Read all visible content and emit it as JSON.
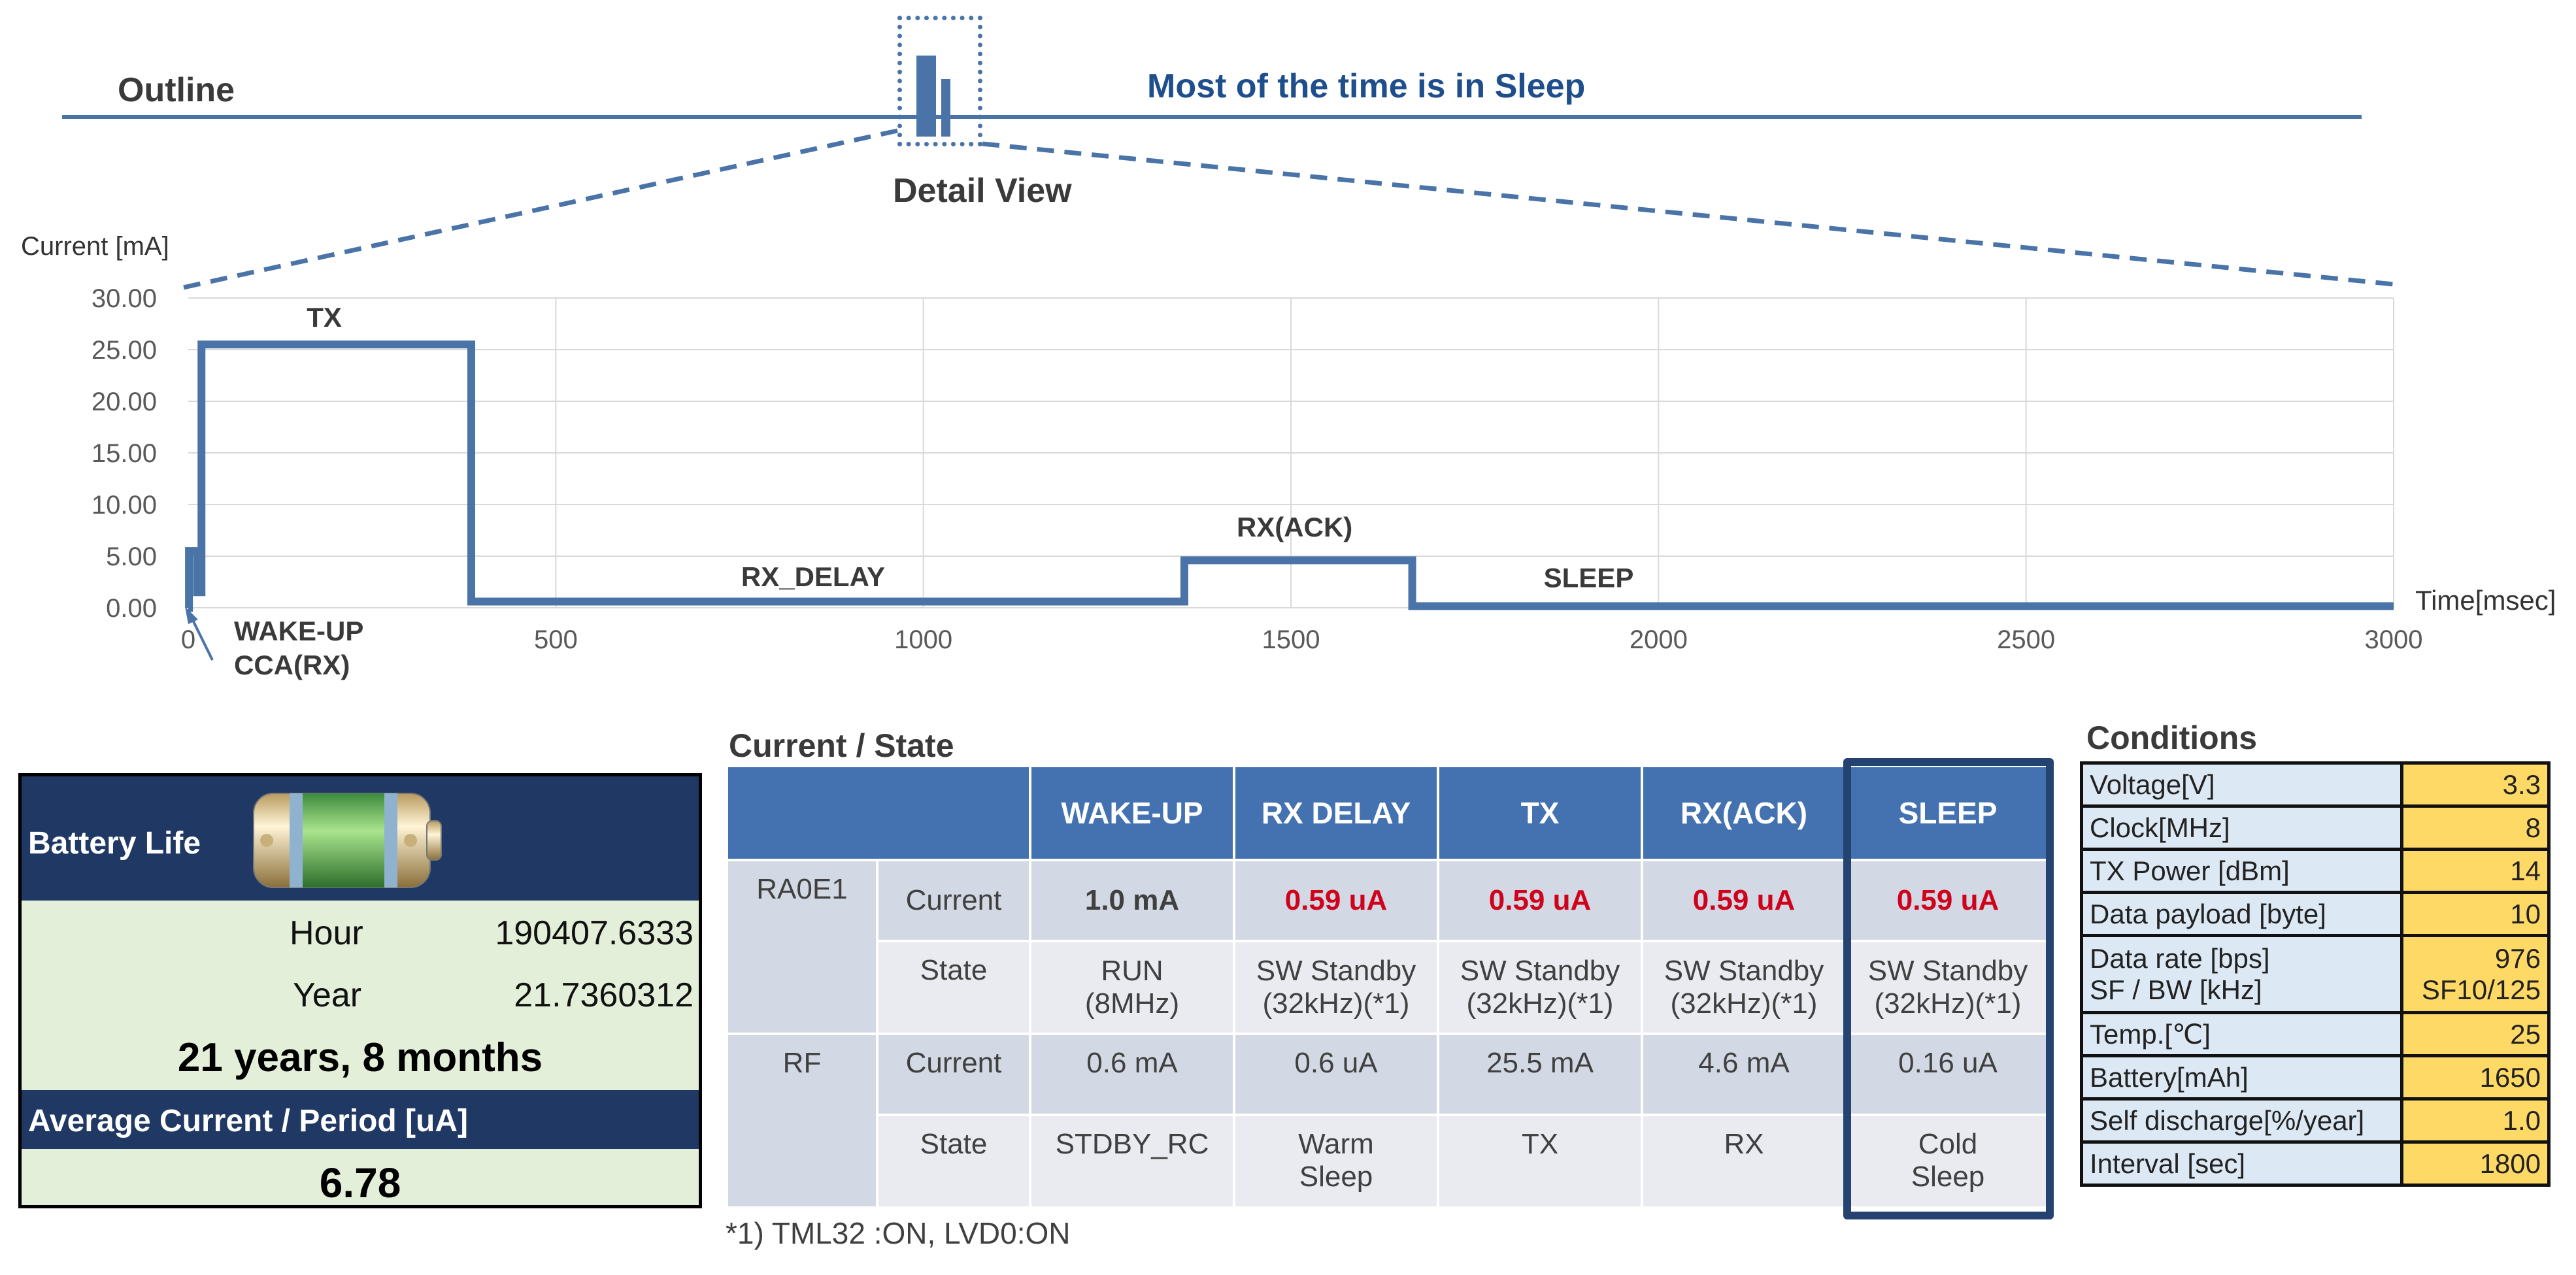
{
  "outline": {
    "label": "Outline",
    "message": "Most of the time is in Sleep",
    "detail_label": "Detail View"
  },
  "chart_data": {
    "type": "line",
    "ylabel": "Current [mA]",
    "xlabel": "Time[msec]",
    "xlim": [
      0,
      3000
    ],
    "ylim": [
      0,
      30
    ],
    "x_ticks": [
      0,
      500,
      1000,
      1500,
      2000,
      2500,
      3000
    ],
    "y_ticks": [
      "0.00",
      "5.00",
      "10.00",
      "15.00",
      "20.00",
      "25.00",
      "30.00"
    ],
    "grid": true,
    "series": [
      {
        "color": "#4a73a8",
        "x": [
          0,
          1,
          1,
          12,
          12,
          18,
          18,
          385,
          385,
          1355,
          1355,
          1665,
          1665,
          3000
        ],
        "y": [
          0,
          0,
          5.5,
          5.5,
          1.5,
          1.5,
          25.5,
          25.5,
          0.6,
          0.6,
          4.6,
          4.6,
          0.16,
          0.16
        ]
      }
    ],
    "annotations": [
      {
        "text": "TX",
        "x": 185,
        "y": 27.2
      },
      {
        "text": "RX_DELAY",
        "x": 850,
        "y": 2.1
      },
      {
        "text": "RX(ACK)",
        "x": 1505,
        "y": 6.9
      },
      {
        "text": "SLEEP",
        "x": 1905,
        "y": 2.0
      }
    ],
    "wake_annotation": [
      "WAKE-UP",
      "CCA(RX)"
    ]
  },
  "battery": {
    "title": "Battery Life",
    "hour_label": "Hour",
    "hour_value": "190407.6333",
    "year_label": "Year",
    "year_value": "21.7360312",
    "summary": "21 years, 8 months",
    "avg_title": "Average Current / Period [uA]",
    "avg_value": "6.78"
  },
  "current_state": {
    "title": "Current / State",
    "headers": [
      "WAKE-UP",
      "RX DELAY",
      "TX",
      "RX(ACK)",
      "SLEEP"
    ],
    "groups": [
      {
        "name": "RA0E1",
        "current_label": "Current",
        "current": [
          "1.0 mA",
          "0.59 uA",
          "0.59 uA",
          "0.59 uA",
          "0.59 uA"
        ],
        "state_label": "State",
        "state": [
          [
            "RUN",
            "(8MHz)"
          ],
          [
            "SW Standby",
            "(32kHz)(*1)"
          ],
          [
            "SW Standby",
            "(32kHz)(*1)"
          ],
          [
            "SW Standby",
            "(32kHz)(*1)"
          ],
          [
            "SW Standby",
            "(32kHz)(*1)"
          ]
        ]
      },
      {
        "name": "RF",
        "current_label": "Current",
        "current": [
          "0.6 mA",
          "0.6 uA",
          "25.5 mA",
          "4.6 mA",
          "0.16 uA"
        ],
        "state_label": "State",
        "state": [
          [
            "STDBY_RC",
            ""
          ],
          [
            "Warm",
            "Sleep"
          ],
          [
            "TX",
            ""
          ],
          [
            "RX",
            ""
          ],
          [
            "Cold",
            "Sleep"
          ]
        ]
      }
    ],
    "footnote": "*1) TML32 :ON, LVD0:ON"
  },
  "conditions": {
    "title": "Conditions",
    "rows": [
      {
        "label": "Voltage[V]",
        "value": "3.3"
      },
      {
        "label": "Clock[MHz]",
        "value": "8"
      },
      {
        "label": "TX Power [dBm]",
        "value": "14"
      },
      {
        "label": "Data payload [byte]",
        "value": "10"
      },
      {
        "label": "Data rate [bps]",
        "label2": "SF / BW [kHz]",
        "value": "976",
        "value2": "SF10/125"
      },
      {
        "label": "Temp.[℃]",
        "value": "25"
      },
      {
        "label": "Battery[mAh]",
        "value": "1650"
      },
      {
        "label": "Self discharge[%/year]",
        "value": "1.0"
      },
      {
        "label": "Interval [sec]",
        "value": "1800"
      }
    ]
  }
}
